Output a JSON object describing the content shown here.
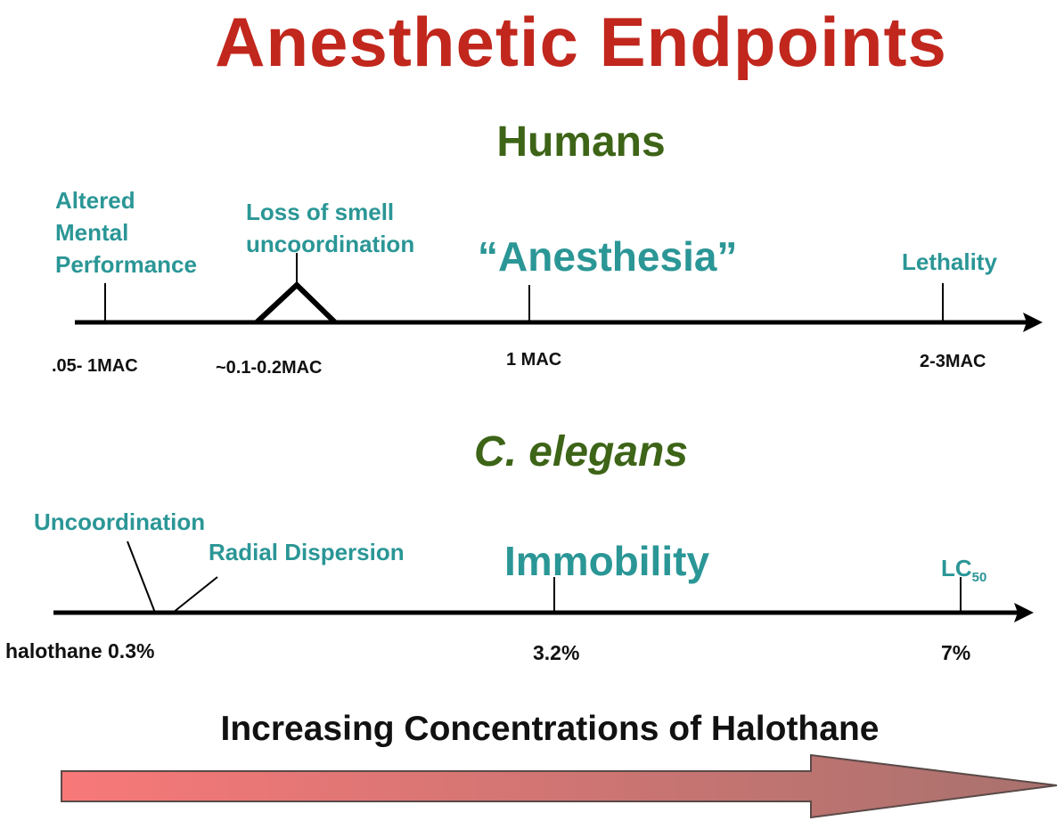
{
  "title": "Anesthetic Endpoints",
  "humans": {
    "heading": "Humans",
    "labels": {
      "altered": "Altered\nMental\nPerformance",
      "smell": "Loss of smell\nuncoordination",
      "anesthesia": "“Anesthesia”",
      "lethality": "Lethality"
    },
    "ticks": {
      "t1": ".05- 1MAC",
      "t2": "~0.1-0.2MAC",
      "t3": "1 MAC",
      "t4": "2-3MAC"
    }
  },
  "elegans": {
    "heading": "C. elegans",
    "labels": {
      "uncoordination": "Uncoordination",
      "radial": "Radial Dispersion",
      "immobility": "Immobility",
      "lc": "LC",
      "lc_sub": "50"
    },
    "ticks": {
      "t1": "halothane 0.3%",
      "t2": "3.2%",
      "t3": "7%"
    }
  },
  "footer": "Increasing Concentrations of Halothane",
  "colors": {
    "title": "#c1271d",
    "heading": "#3d6417",
    "label": "#2b9696",
    "arrow_start": "#f87878",
    "arrow_end": "#a8726e"
  }
}
